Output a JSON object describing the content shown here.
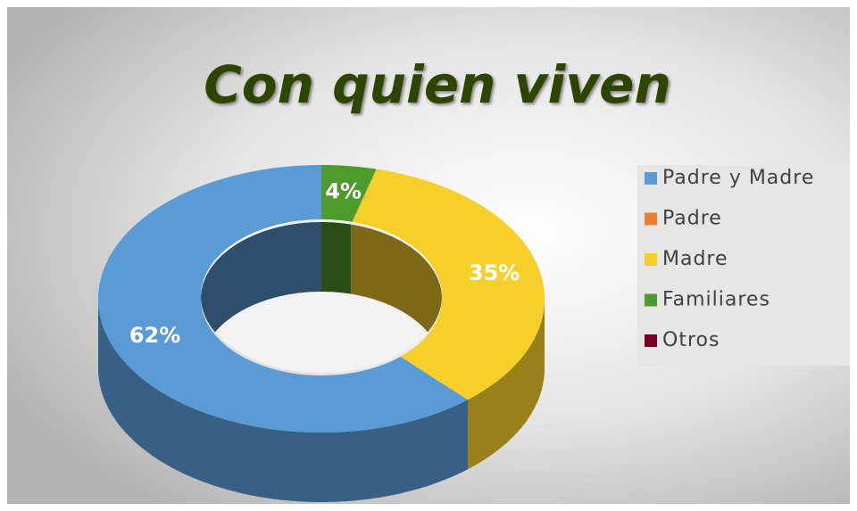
{
  "chart_data": {
    "type": "doughnut3d",
    "title": "Con quien viven",
    "categories": [
      "Padre y Madre",
      "Padre",
      "Madre",
      "Familiares",
      "Otros"
    ],
    "values": [
      62,
      0,
      35,
      4,
      0
    ],
    "value_labels": [
      "62%",
      null,
      "35%",
      "4%",
      null
    ],
    "colors": [
      "#5b9bd5",
      "#ed7d31",
      "#f7cf2a",
      "#4f9a2c",
      "#7a0020"
    ],
    "legend": "right"
  }
}
